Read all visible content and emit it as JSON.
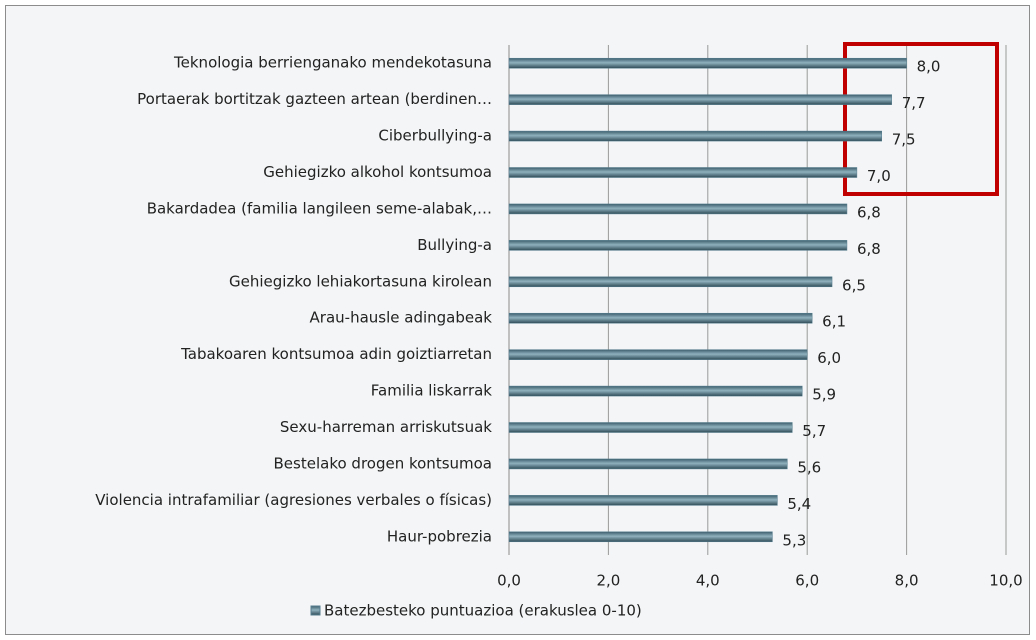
{
  "chart_data": {
    "type": "bar",
    "orientation": "horizontal",
    "categories": [
      "Teknologia berrienganako mendekotasuna",
      "Portaerak bortitzak gazteen artean (berdinen…",
      "Ciberbullying-a",
      "Gehiegizko alkohol kontsumoa",
      "Bakardadea (familia langileen seme-alabak,…",
      "Bullying-a",
      "Gehiegizko lehiakortasuna kirolean",
      "Arau-hausle adingabeak",
      "Tabakoaren kontsumoa adin goiztiarretan",
      "Familia liskarrak",
      "Sexu-harreman arriskutsuak",
      "Bestelako drogen kontsumoa",
      "Violencia intrafamiliar (agresiones verbales o físicas)",
      "Haur-pobrezia"
    ],
    "series": [
      {
        "name": "Batezbesteko puntuazioa (erakuslea 0-10)",
        "color": "#557d8e",
        "values": [
          8.0,
          7.7,
          7.5,
          7.0,
          6.8,
          6.8,
          6.5,
          6.1,
          6.0,
          5.9,
          5.7,
          5.6,
          5.4,
          5.3
        ],
        "value_labels": [
          "8,0",
          "7,7",
          "7,5",
          "7,0",
          "6,8",
          "6,8",
          "6,5",
          "6,1",
          "6,0",
          "5,9",
          "5,7",
          "5,6",
          "5,4",
          "5,3"
        ]
      }
    ],
    "xlim": [
      0,
      10
    ],
    "xticks": [
      {
        "value": 0,
        "label": "0,0"
      },
      {
        "value": 2,
        "label": "2,0"
      },
      {
        "value": 4,
        "label": "4,0"
      },
      {
        "value": 6,
        "label": "6,0"
      },
      {
        "value": 8,
        "label": "8,0"
      },
      {
        "value": 10,
        "label": "10,0"
      }
    ],
    "grid": true,
    "legend": "bottom"
  }
}
